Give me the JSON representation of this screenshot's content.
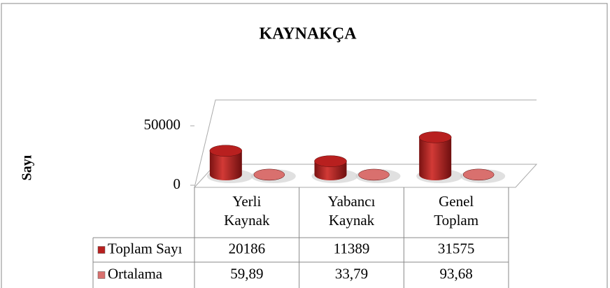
{
  "chart_data": {
    "type": "bar",
    "title": "KAYNAKÇA",
    "y_label": "Sayı",
    "categories": [
      "Yerli Kaynak",
      "Yabancı Kaynak",
      "Genel Toplam"
    ],
    "series": [
      {
        "name": "Toplam Sayı",
        "color": "#b8201f",
        "values": [
          20186,
          11389,
          31575
        ]
      },
      {
        "name": "Ortalama",
        "color": "#d9706e",
        "values": [
          59.89,
          33.79,
          93.68
        ],
        "value_labels": [
          "59,89",
          "33,79",
          "93,68"
        ]
      }
    ],
    "ylim": [
      0,
      60000
    ],
    "yticks": [
      0,
      50000
    ],
    "grid": false
  }
}
